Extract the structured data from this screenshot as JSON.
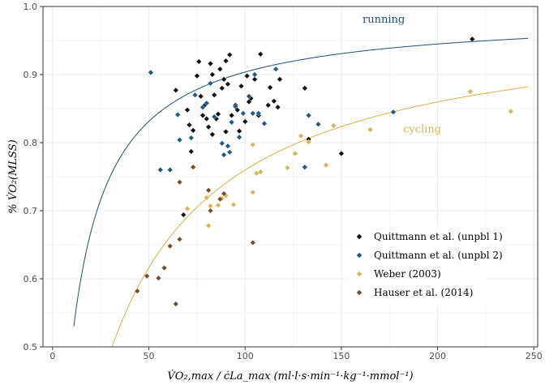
{
  "chart_data": {
    "type": "scatter",
    "xlabel": "V̇O₂,max / ċLa_max (ml·l·s·min⁻¹·kg⁻¹·mmol⁻¹)",
    "ylabel": "% V̇O₂(MLSS)",
    "xlim": [
      -5,
      252
    ],
    "ylim": [
      0.5,
      1.0
    ],
    "x_ticks": [
      0,
      50,
      100,
      150,
      200,
      250
    ],
    "y_ticks": [
      0.5,
      0.6,
      0.7,
      0.8,
      0.9,
      1.0
    ],
    "x_tick_labels": [
      "0",
      "50",
      "100",
      "150",
      "200",
      "250"
    ],
    "y_tick_labels": [
      "0.5",
      "0.6",
      "0.7",
      "0.8",
      "0.9",
      "1.0"
    ],
    "grid": true,
    "legend_position": "bottom-right",
    "curves": [
      {
        "label": "running",
        "color": "#1f4e79",
        "a": 0.99,
        "b": 9.55,
        "x_from": 11,
        "x_to": 247
      },
      {
        "label": "cycling",
        "color": "#e0b04a",
        "a": 0.99,
        "b": 30.3,
        "x_from": 30,
        "x_to": 247
      }
    ],
    "series": [
      {
        "name": "Quittmann et al. (unpbl 1)",
        "color": "#111111",
        "points": [
          [
            64,
            0.877
          ],
          [
            68,
            0.694
          ],
          [
            70,
            0.848
          ],
          [
            71,
            0.826
          ],
          [
            72,
            0.787
          ],
          [
            73,
            0.818
          ],
          [
            75,
            0.898
          ],
          [
            76,
            0.919
          ],
          [
            77,
            0.868
          ],
          [
            78,
            0.84
          ],
          [
            79,
            0.855
          ],
          [
            80,
            0.835
          ],
          [
            81,
            0.823
          ],
          [
            82,
            0.916
          ],
          [
            83,
            0.9
          ],
          [
            83,
            0.812
          ],
          [
            84,
            0.87
          ],
          [
            85,
            0.835
          ],
          [
            86,
            0.842
          ],
          [
            87,
            0.908
          ],
          [
            88,
            0.88
          ],
          [
            89,
            0.893
          ],
          [
            90,
            0.92
          ],
          [
            90,
            0.816
          ],
          [
            91,
            0.886
          ],
          [
            92,
            0.929
          ],
          [
            93,
            0.84
          ],
          [
            95,
            0.855
          ],
          [
            96,
            0.848
          ],
          [
            97,
            0.817
          ],
          [
            98,
            0.883
          ],
          [
            100,
            0.831
          ],
          [
            101,
            0.898
          ],
          [
            102,
            0.86
          ],
          [
            103,
            0.865
          ],
          [
            105,
            0.893
          ],
          [
            107,
            0.84
          ],
          [
            108,
            0.93
          ],
          [
            112,
            0.855
          ],
          [
            113,
            0.881
          ],
          [
            115,
            0.861
          ],
          [
            118,
            0.893
          ],
          [
            117,
            0.852
          ],
          [
            131,
            0.88
          ],
          [
            133,
            0.805
          ],
          [
            150,
            0.784
          ],
          [
            218,
            0.952
          ]
        ]
      },
      {
        "name": "Quittmann et al. (unpbl 2)",
        "color": "#1f5a85",
        "points": [
          [
            51,
            0.903
          ],
          [
            56,
            0.76
          ],
          [
            61,
            0.76
          ],
          [
            65,
            0.841
          ],
          [
            66,
            0.804
          ],
          [
            72,
            0.807
          ],
          [
            74,
            0.87
          ],
          [
            78,
            0.852
          ],
          [
            80,
            0.858
          ],
          [
            82,
            0.887
          ],
          [
            84,
            0.838
          ],
          [
            88,
            0.799
          ],
          [
            89,
            0.782
          ],
          [
            91,
            0.795
          ],
          [
            92,
            0.786
          ],
          [
            93,
            0.83
          ],
          [
            95,
            0.853
          ],
          [
            97,
            0.808
          ],
          [
            99,
            0.843
          ],
          [
            102,
            0.868
          ],
          [
            104,
            0.843
          ],
          [
            105,
            0.9
          ],
          [
            107,
            0.843
          ],
          [
            110,
            0.828
          ],
          [
            116,
            0.908
          ],
          [
            133,
            0.84
          ],
          [
            131,
            0.764
          ],
          [
            138,
            0.827
          ],
          [
            177,
            0.845
          ]
        ]
      },
      {
        "name": "Weber (2003)",
        "color": "#d9b45a",
        "points": [
          [
            70,
            0.703
          ],
          [
            80,
            0.719
          ],
          [
            81,
            0.678
          ],
          [
            82,
            0.707
          ],
          [
            86,
            0.708
          ],
          [
            88,
            0.718
          ],
          [
            90,
            0.722
          ],
          [
            94,
            0.709
          ],
          [
            104,
            0.797
          ],
          [
            104,
            0.727
          ],
          [
            106,
            0.755
          ],
          [
            108,
            0.757
          ],
          [
            122,
            0.763
          ],
          [
            126,
            0.784
          ],
          [
            129,
            0.81
          ],
          [
            133,
            0.801
          ],
          [
            142,
            0.767
          ],
          [
            146,
            0.825
          ],
          [
            165,
            0.819
          ],
          [
            217,
            0.875
          ],
          [
            238,
            0.846
          ]
        ]
      },
      {
        "name": "Hauser et al. (2014)",
        "color": "#7b4f24",
        "points": [
          [
            44,
            0.582
          ],
          [
            49,
            0.604
          ],
          [
            55,
            0.601
          ],
          [
            58,
            0.616
          ],
          [
            61,
            0.648
          ],
          [
            64,
            0.563
          ],
          [
            66,
            0.658
          ],
          [
            66,
            0.742
          ],
          [
            73,
            0.764
          ],
          [
            81,
            0.73
          ],
          [
            82,
            0.7
          ],
          [
            87,
            0.717
          ],
          [
            89,
            0.725
          ],
          [
            104,
            0.653
          ]
        ]
      }
    ]
  }
}
